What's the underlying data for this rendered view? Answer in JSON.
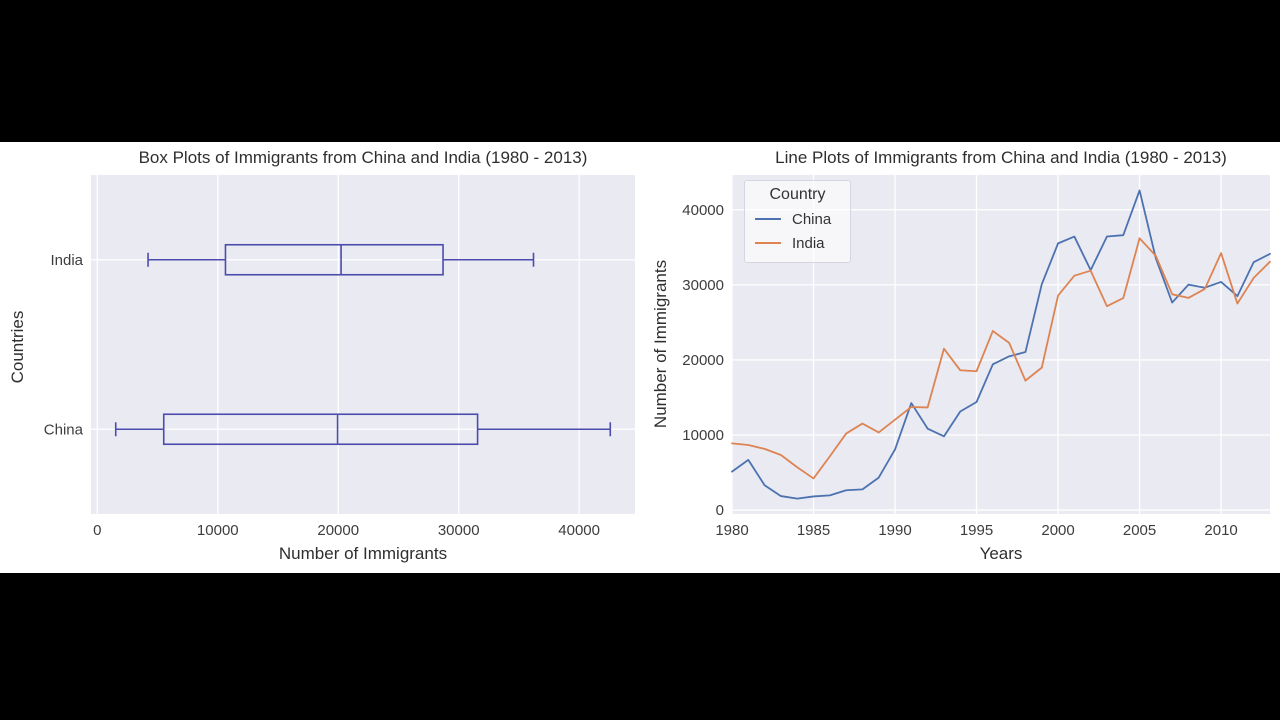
{
  "theme": {
    "frame_background": "#000000",
    "figure_background": "#ffffff",
    "plot_background": "#eaeaf2",
    "grid_color": "#ffffff",
    "title_color": "#2f2f2f",
    "tick_color": "#3d3d3d",
    "box_color": "#4c4cae",
    "china_color": "#4c72b0",
    "india_color": "#dd8452"
  },
  "chart_data": [
    {
      "type": "box",
      "orientation": "horizontal",
      "title": "Box Plots of Immigrants from China and India (1980 - 2013)",
      "xlabel": "Number of Immigrants",
      "ylabel": "Countries",
      "grid": true,
      "categories": [
        "China",
        "India"
      ],
      "xticks": [
        0,
        10000,
        20000,
        30000,
        40000
      ],
      "xlim": [
        -526,
        44637
      ],
      "box_color": "#4c4cae",
      "boxes": [
        {
          "category": "China",
          "whisker_low": 1527,
          "q1": 5512.75,
          "median": 19945,
          "q3": 31568.5,
          "whisker_high": 42584
        },
        {
          "category": "India",
          "whisker_low": 4211,
          "q1": 10637.75,
          "median": 20235,
          "q3": 28699.5,
          "whisker_high": 36210
        }
      ]
    },
    {
      "type": "line",
      "title": "Line Plots of Immigrants from China and India (1980 - 2013)",
      "xlabel": "Years",
      "ylabel": "Number of Immigrants",
      "legend_title": "Country",
      "legend_position": "upper-left",
      "grid": true,
      "x": [
        1980,
        1981,
        1982,
        1983,
        1984,
        1985,
        1986,
        1987,
        1988,
        1989,
        1990,
        1991,
        1992,
        1993,
        1994,
        1995,
        1996,
        1997,
        1998,
        1999,
        2000,
        2001,
        2002,
        2003,
        2004,
        2005,
        2006,
        2007,
        2008,
        2009,
        2010,
        2011,
        2012,
        2013
      ],
      "xticks": [
        1980,
        1985,
        1990,
        1995,
        2000,
        2005,
        2010
      ],
      "yticks": [
        0,
        10000,
        20000,
        30000,
        40000
      ],
      "xlim": [
        1980,
        2013
      ],
      "ylim": [
        -526,
        44637
      ],
      "series": [
        {
          "name": "China",
          "color": "#4c72b0",
          "values": [
            5123,
            6682,
            3308,
            1863,
            1527,
            1816,
            1960,
            2643,
            2758,
            4323,
            8076,
            14255,
            10846,
            9817,
            13128,
            14398,
            19415,
            20475,
            21049,
            30069,
            35529,
            36434,
            31961,
            36439,
            36619,
            42584,
            33518,
            27642,
            30037,
            29622,
            30391,
            28502,
            33024,
            34129
          ]
        },
        {
          "name": "India",
          "color": "#dd8452",
          "values": [
            8880,
            8670,
            8147,
            7338,
            5704,
            4211,
            7150,
            10189,
            11522,
            10343,
            12041,
            13734,
            13673,
            21496,
            18620,
            18489,
            23859,
            22268,
            17241,
            18974,
            28572,
            31223,
            31889,
            27155,
            28235,
            36210,
            33848,
            28742,
            28261,
            29456,
            34235,
            27509,
            30933,
            33087
          ]
        }
      ]
    }
  ]
}
